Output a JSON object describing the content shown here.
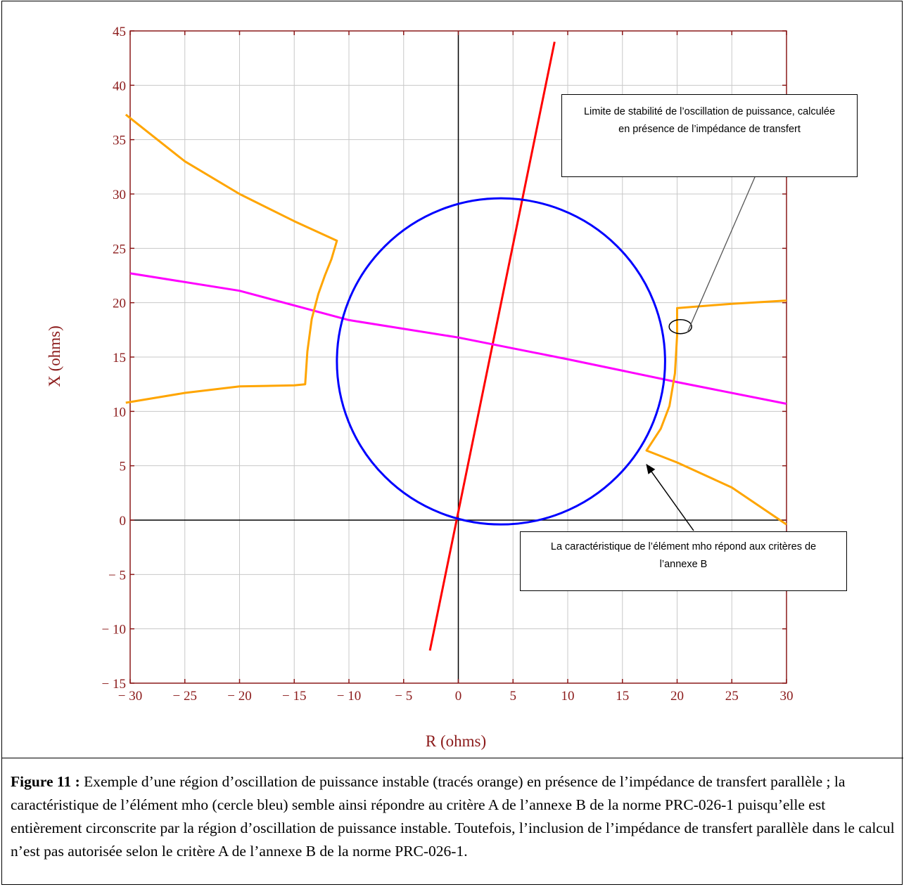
{
  "chart_data": {
    "type": "line",
    "xlabel": "R (ohms)",
    "ylabel": "X (ohms)",
    "xlim": [
      -30,
      30
    ],
    "ylim": [
      -15,
      45
    ],
    "x_ticks": [
      -30,
      -25,
      -20,
      -15,
      -10,
      -5,
      0,
      5,
      10,
      15,
      20,
      25,
      30
    ],
    "y_ticks": [
      -15,
      -10,
      -5,
      0,
      5,
      10,
      15,
      20,
      25,
      30,
      35,
      40,
      45
    ],
    "x_tick_labels": [
      "− 30",
      "− 25",
      "− 20",
      "− 15",
      "− 10",
      "− 5",
      "0",
      "5",
      "10",
      "15",
      "20",
      "25",
      "30"
    ],
    "y_tick_labels": [
      "− 15",
      "− 10",
      "− 5",
      "0",
      "5",
      "10",
      "15",
      "20",
      "25",
      "30",
      "35",
      "40",
      "45"
    ],
    "grid": true,
    "series": [
      {
        "color": "#ff0000",
        "type": "line",
        "points": [
          [
            -2.6,
            -12
          ],
          [
            8.8,
            44
          ]
        ]
      },
      {
        "color": "#ff00ff",
        "type": "line",
        "points": [
          [
            -30,
            22.7
          ],
          [
            -20,
            21.1
          ],
          [
            -10,
            18.4
          ],
          [
            0,
            16.8
          ],
          [
            10,
            14.8
          ],
          [
            20,
            12.7
          ],
          [
            30,
            10.7
          ]
        ]
      },
      {
        "color": "#0000ff",
        "type": "circle",
        "center": [
          3.9,
          14.6
        ],
        "radius": 15.0
      },
      {
        "color": "#ffa500",
        "type": "line",
        "points": [
          [
            -30.4,
            37.3
          ],
          [
            -25,
            33
          ],
          [
            -20,
            30
          ],
          [
            -15,
            27.5
          ],
          [
            -11.1,
            25.7
          ],
          [
            -11.6,
            24
          ],
          [
            -12.2,
            22.5
          ],
          [
            -12.8,
            20.8
          ],
          [
            -13.4,
            18.5
          ],
          [
            -13.8,
            15.5
          ],
          [
            -14.0,
            12.5
          ],
          [
            -15,
            12.4
          ],
          [
            -20,
            12.3
          ],
          [
            -25,
            11.7
          ],
          [
            -30.4,
            10.8
          ]
        ]
      },
      {
        "color": "#ffa500",
        "type": "line",
        "points": [
          [
            30,
            20.2
          ],
          [
            25,
            19.9
          ],
          [
            20,
            19.5
          ],
          [
            20.0,
            17.0
          ],
          [
            19.8,
            13.5
          ],
          [
            19.3,
            10.5
          ],
          [
            18.5,
            8.4
          ],
          [
            17.2,
            6.4
          ],
          [
            20,
            5.3
          ],
          [
            25,
            3
          ],
          [
            30,
            -0.4
          ]
        ]
      }
    ],
    "annotations": [
      {
        "text": "Limite de stabilité de l’oscillation de puissance, calculée en présence de l’impédance de transfert",
        "target": [
          20.3,
          17.8
        ]
      },
      {
        "text": "La caractéristique de l’élément mho répond aux critères de l’annexe B",
        "target": [
          16.9,
          5.5
        ]
      }
    ]
  },
  "caption": {
    "label": "Figure 11 :",
    "text": " Exemple d’une région d’oscillation de puissance instable (tracés orange) en présence de l’impédance de transfert parallèle ; la caractéristique de l’élément mho (cercle bleu) semble ainsi répondre au critère A de l’annexe B de la norme PRC-026-1 puisqu’elle est entièrement circonscrite par la région d’oscillation de puissance instable. Toutefois, l’inclusion de l’impédance de transfert parallèle dans le calcul n’est pas autorisée selon le critère A de l’annexe B de la norme PRC-026-1."
  },
  "colors": {
    "axis": "#8b1a1a",
    "grid": "#c8c8c8",
    "tick_text": "#8b1a1a"
  }
}
